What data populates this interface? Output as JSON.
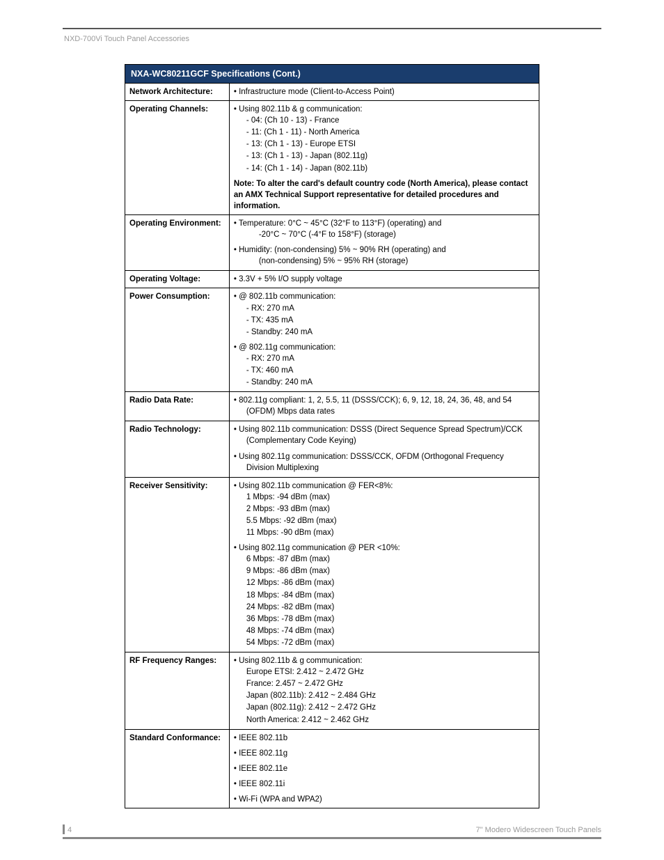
{
  "header": {
    "breadcrumb": "NXD-700Vi Touch Panel Accessories"
  },
  "table": {
    "title": "NXA-WC80211GCF Specifications (Cont.)",
    "header_bg": "#1a3d6d",
    "header_fg": "#ffffff",
    "border_color": "#000000",
    "rows": [
      {
        "label": "Network Architecture:",
        "items": [
          {
            "bullet": "• Infrastructure mode (Client-to-Access Point)"
          }
        ]
      },
      {
        "label": "Operating Channels:",
        "items": [
          {
            "bullet": "• Using 802.11b & g communication:"
          },
          {
            "indent": "- 04: (Ch 10 - 13) - France"
          },
          {
            "indent": "- 11: (Ch 1 - 11) - North America"
          },
          {
            "indent": "- 13: (Ch 1 - 13) - Europe ETSI"
          },
          {
            "indent": "- 13: (Ch 1 - 13) - Japan (802.11g)"
          },
          {
            "indent": "- 14: (Ch 1 - 14) - Japan (802.11b)"
          },
          {
            "note": "Note: To alter the card's default country code (North America), please contact an AMX Technical Support representative for detailed procedures and information."
          }
        ]
      },
      {
        "label": "Operating Environment:",
        "items": [
          {
            "bullet": "• Temperature: 0°C ~ 45°C (32°F to 113°F) (operating) and"
          },
          {
            "indent2": "-20°C ~ 70°C (-4°F to 158°F) (storage)"
          },
          {
            "gap": true,
            "bullet": "• Humidity: (non-condensing) 5% ~ 90% RH (operating) and"
          },
          {
            "indent2": "(non-condensing) 5% ~ 95% RH (storage)"
          }
        ]
      },
      {
        "label": "Operating Voltage:",
        "items": [
          {
            "bullet": "• 3.3V + 5% I/O supply voltage"
          }
        ]
      },
      {
        "label": "Power Consumption:",
        "items": [
          {
            "bullet": "• @ 802.11b communication:"
          },
          {
            "indent": "- RX: 270 mA"
          },
          {
            "indent": "- TX: 435 mA"
          },
          {
            "indent": "- Standby: 240 mA"
          },
          {
            "gap": true,
            "bullet": "• @ 802.11g communication:"
          },
          {
            "indent": "- RX: 270 mA"
          },
          {
            "indent": "- TX: 460 mA"
          },
          {
            "indent": "- Standby: 240 mA"
          }
        ]
      },
      {
        "label": "Radio Data Rate:",
        "items": [
          {
            "bullet": "• 802.11g compliant: 1, 2, 5.5, 11 (DSSS/CCK); 6, 9, 12, 18, 24, 36, 48, and 54"
          },
          {
            "indent": "(OFDM) Mbps data rates"
          }
        ]
      },
      {
        "label": "Radio Technology:",
        "items": [
          {
            "bullet": "• Using 802.11b communication: DSSS (Direct Sequence Spread Spectrum)/CCK"
          },
          {
            "indent": "(Complementary Code Keying)"
          },
          {
            "gap": true,
            "bullet": "• Using 802.11g communication: DSSS/CCK, OFDM (Orthogonal Frequency"
          },
          {
            "indent": "Division Multiplexing"
          }
        ]
      },
      {
        "label": "Receiver Sensitivity:",
        "items": [
          {
            "bullet": "• Using 802.11b communication @ FER<8%:"
          },
          {
            "indent": "1 Mbps: -94 dBm (max)"
          },
          {
            "indent": "2 Mbps: -93 dBm (max)"
          },
          {
            "indent": "5.5 Mbps: -92 dBm (max)"
          },
          {
            "indent": "11 Mbps: -90 dBm (max)"
          },
          {
            "gap": true,
            "bullet": "• Using 802.11g communication @ PER <10%:"
          },
          {
            "indent": "6 Mbps: -87 dBm (max)"
          },
          {
            "indent": "9 Mbps: -86 dBm (max)"
          },
          {
            "indent": "12 Mbps: -86 dBm (max)"
          },
          {
            "indent": "18 Mbps: -84 dBm (max)"
          },
          {
            "indent": "24 Mbps: -82 dBm (max)"
          },
          {
            "indent": "36 Mbps: -78 dBm (max)"
          },
          {
            "indent": "48 Mbps: -74 dBm (max)"
          },
          {
            "indent": "54 Mbps: -72 dBm (max)"
          }
        ]
      },
      {
        "label": "RF Frequency Ranges:",
        "items": [
          {
            "bullet": "• Using 802.11b & g communication:"
          },
          {
            "indent": "Europe ETSI: 2.412  ~ 2.472 GHz"
          },
          {
            "indent": "France: 2.457  ~ 2.472 GHz"
          },
          {
            "indent": "Japan (802.11b):  2.412  ~ 2.484 GHz"
          },
          {
            "indent": "Japan (802.11g): 2.412  ~ 2.472 GHz"
          },
          {
            "indent": "North America: 2.412  ~ 2.462 GHz"
          }
        ]
      },
      {
        "label": "Standard Conformance:",
        "items": [
          {
            "bullet": "• IEEE 802.11b"
          },
          {
            "gap": true,
            "bullet": "• IEEE 802.11g"
          },
          {
            "gap": true,
            "bullet": "• IEEE 802.11e"
          },
          {
            "gap": true,
            "bullet": "• IEEE 802.11i"
          },
          {
            "gap": true,
            "bullet": "• Wi-Fi (WPA and WPA2)"
          }
        ]
      }
    ]
  },
  "footer": {
    "page_number": "4",
    "text": "7\" Modero Widescreen Touch Panels"
  }
}
